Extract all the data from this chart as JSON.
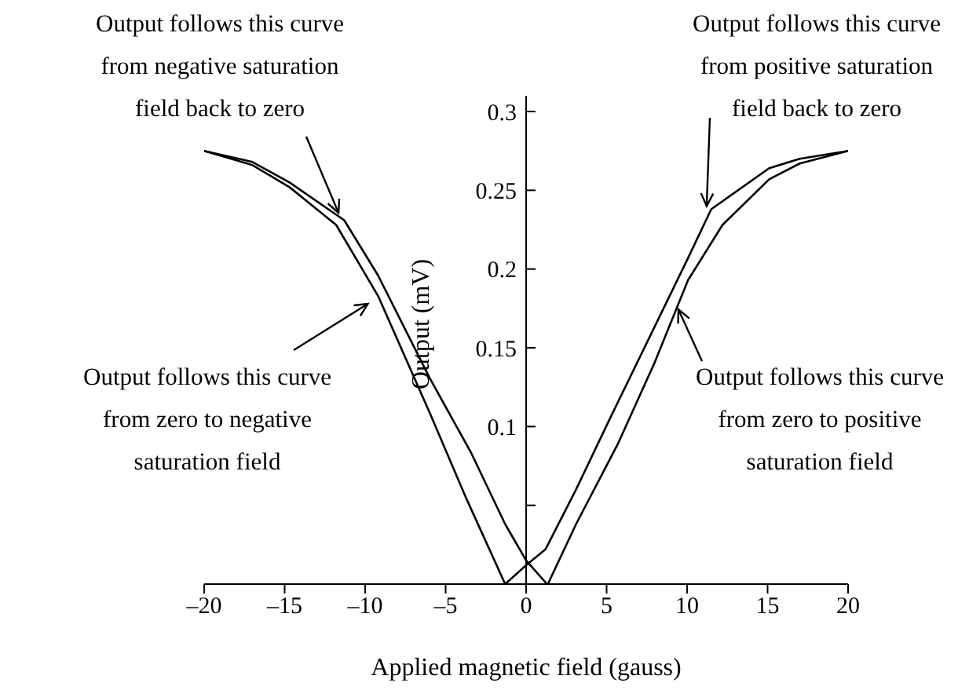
{
  "chart_data": {
    "type": "line",
    "xlabel": "Applied magnetic field (gauss)",
    "ylabel": "Output (mV)",
    "xlim": [
      -20,
      20
    ],
    "xticks": [
      {
        "value": -20,
        "label": "–20"
      },
      {
        "value": -15,
        "label": "–15"
      },
      {
        "value": -10,
        "label": "–10"
      },
      {
        "value": -5,
        "label": "–5"
      },
      0,
      5,
      10,
      15,
      20
    ],
    "ylim": [
      0,
      0.31
    ],
    "yticks": [
      {
        "value": 0.05,
        "label": null
      },
      0.1,
      0.15,
      0.2,
      0.25,
      0.3
    ],
    "marker": "none",
    "line_style": "solid",
    "series": [
      {
        "color": "#000000",
        "x": [
          -20,
          -17,
          -14.7,
          -11.3,
          -9.2,
          -6,
          -3.4,
          -1.3,
          0,
          1.3
        ],
        "values": [
          0.275,
          0.268,
          0.255,
          0.231,
          0.196,
          0.131,
          0.083,
          0.038,
          0.015,
          0
        ]
      },
      {
        "color": "#000000",
        "x": [
          -1.3,
          -3.7,
          -6,
          -9.2,
          -11.8,
          -14.7,
          -17,
          -20
        ],
        "values": [
          0,
          0.054,
          0.109,
          0.183,
          0.228,
          0.252,
          0.266,
          0.275
        ]
      },
      {
        "color": "#000000",
        "x": [
          20,
          17,
          15.1,
          11.5,
          10.06,
          5.06,
          3.1,
          1.2,
          0,
          -1.3
        ],
        "values": [
          0.275,
          0.27,
          0.264,
          0.238,
          0.207,
          0.102,
          0.06,
          0.022,
          0.012,
          0
        ]
      },
      {
        "color": "#000000",
        "x": [
          1.35,
          3.1,
          5.7,
          8,
          10.06,
          12.2,
          15.1,
          17,
          20
        ],
        "values": [
          0,
          0.038,
          0.089,
          0.141,
          0.193,
          0.228,
          0.257,
          0.267,
          0.275
        ]
      }
    ],
    "annotations": [
      {
        "text": "Output follows this curve\nfrom negative saturation\nfield back to zero",
        "x": -11.5,
        "y": 0.232
      },
      {
        "text": "Output follows this curve\nfrom positive saturation\nfield back to zero",
        "x": 11.2,
        "y": 0.236
      },
      {
        "text": "Output follows this curve\nfrom zero to negative\nsaturation field",
        "x": -9.5,
        "y": 0.18
      },
      {
        "text": "Output follows this curve\nfrom zero to positive\nsaturation field",
        "x": 9.3,
        "y": 0.178
      }
    ]
  }
}
